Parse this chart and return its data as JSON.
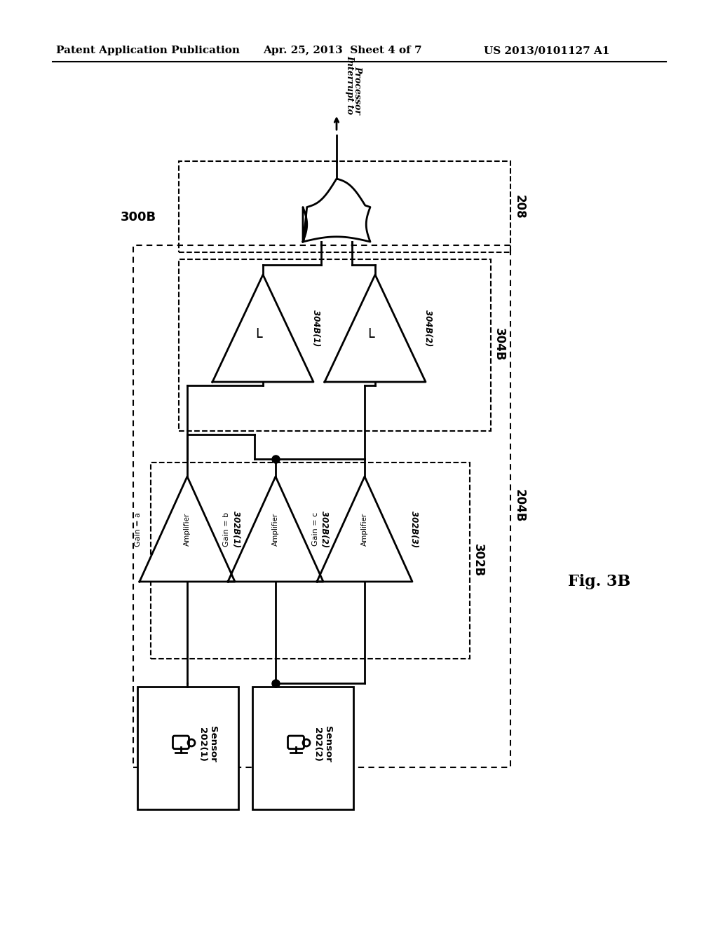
{
  "header_left": "Patent Application Publication",
  "header_mid": "Apr. 25, 2013  Sheet 4 of 7",
  "header_right": "US 2013/0101127 A1",
  "fig_label": "Fig. 3B",
  "label_300B": "300B",
  "label_208": "208",
  "label_204B": "204B",
  "label_304B": "304B",
  "label_302B": "302B",
  "label_interrupt_line1": "Interrupt to",
  "label_interrupt_line2": "Processor",
  "amp1_label": "304B(1)",
  "amp2_label": "304B(2)",
  "amp3_label": "302B(1)",
  "amp4_label": "302B(2)",
  "amp5_label": "302B(3)",
  "gain_a": "Gain = a",
  "gain_b": "Gain = b",
  "gain_c": "Gain = c",
  "amplifier_text": "Amplifier",
  "sensor1_label": "Sensor\n202(1)",
  "sensor2_label": "Sensor\n202(2)",
  "bg_color": "#ffffff",
  "line_color": "#000000",
  "threshold_symbol": "L"
}
